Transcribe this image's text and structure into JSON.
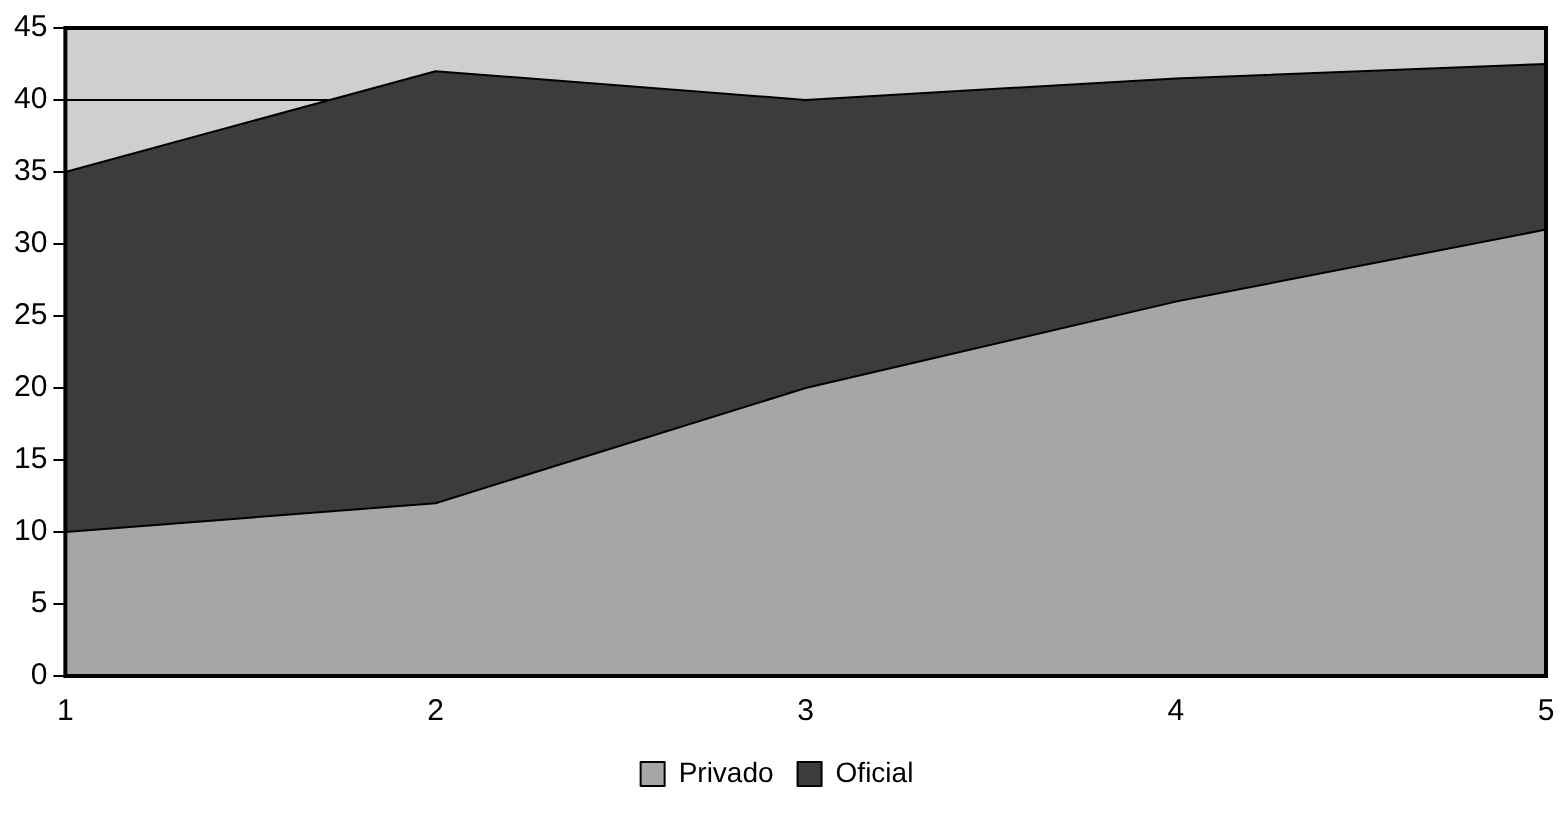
{
  "chart_data": {
    "type": "area",
    "stacked": true,
    "x": [
      1,
      2,
      3,
      4,
      5
    ],
    "series": [
      {
        "name": "Privado",
        "color": "#a6a6a6",
        "values": [
          10,
          12,
          20,
          26,
          31
        ]
      },
      {
        "name": "Oficial",
        "color": "#3c3c3c",
        "values": [
          25,
          30,
          20,
          15.5,
          11.5
        ]
      }
    ],
    "xlim": [
      1,
      5
    ],
    "xticks": [
      1,
      2,
      3,
      4,
      5
    ],
    "ylim": [
      0,
      45
    ],
    "yticks": [
      0,
      5,
      10,
      15,
      20,
      25,
      30,
      35,
      40,
      45
    ],
    "grid": "y",
    "legend": "bottom"
  }
}
